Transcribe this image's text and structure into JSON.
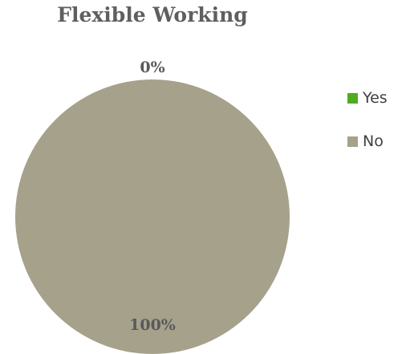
{
  "chart_data": {
    "type": "pie",
    "title": "Flexible Working",
    "categories": [
      "Yes",
      "No"
    ],
    "values": [
      0,
      100
    ],
    "data_labels": [
      "0%",
      "100%"
    ],
    "colors": [
      "#4fab1f",
      "#a6a18b"
    ],
    "legend_position": "right"
  }
}
